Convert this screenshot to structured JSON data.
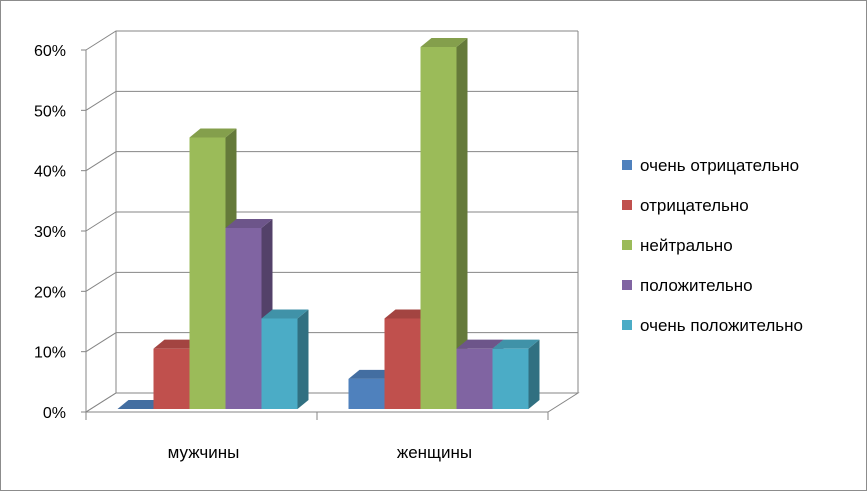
{
  "chart_data": {
    "type": "bar",
    "categories": [
      "мужчины",
      "женщины"
    ],
    "series": [
      {
        "name": "очень отрицательно",
        "values": [
          0,
          5
        ]
      },
      {
        "name": "отрицательно",
        "values": [
          10,
          15
        ]
      },
      {
        "name": "нейтрально",
        "values": [
          45,
          60
        ]
      },
      {
        "name": "положительно",
        "values": [
          30,
          10
        ]
      },
      {
        "name": "очень положительно",
        "values": [
          15,
          10
        ]
      }
    ],
    "y_ticks": [
      "0%",
      "10%",
      "20%",
      "30%",
      "40%",
      "50%",
      "60%"
    ],
    "ylim": [
      0,
      60
    ],
    "unit": "%",
    "grid": true,
    "legend_position": "right",
    "style": "3d-clustered-column",
    "colors": {
      "очень отрицательно": "#4F81BD",
      "отрицательно": "#C0504D",
      "нейтрально": "#9BBB59",
      "положительно": "#8064A2",
      "очень положительно": "#4BACC6"
    }
  }
}
